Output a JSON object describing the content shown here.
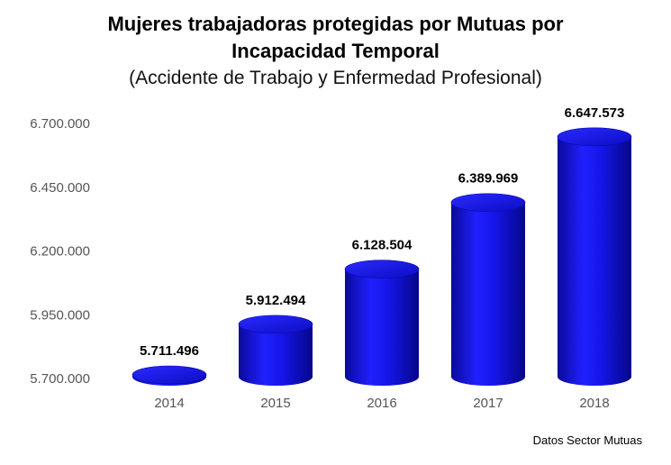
{
  "chart_data": {
    "type": "bar",
    "title_line1": "Mujeres trabajadoras protegidas por Mutuas por",
    "title_line2": "Incapacidad Temporal",
    "subtitle": "(Accidente de Trabajo y Enfermedad Profesional)",
    "categories": [
      "2014",
      "2015",
      "2016",
      "2017",
      "2018"
    ],
    "values": [
      5711496,
      5912494,
      6128504,
      6389969,
      6647573
    ],
    "value_labels": [
      "5.711.496",
      "5.912.494",
      "6.128.504",
      "6.389.969",
      "6.647.573"
    ],
    "y_ticks": [
      "5.700.000",
      "5.950.000",
      "6.200.000",
      "6.450.000",
      "6.700.000"
    ],
    "y_tick_values": [
      5700000,
      5950000,
      6200000,
      6450000,
      6700000
    ],
    "ylim": [
      5700000,
      6700000
    ],
    "grid": false,
    "bar_shape": "cylinder",
    "bar_color": "#1010dd",
    "source": "Datos Sector Mutuas"
  }
}
